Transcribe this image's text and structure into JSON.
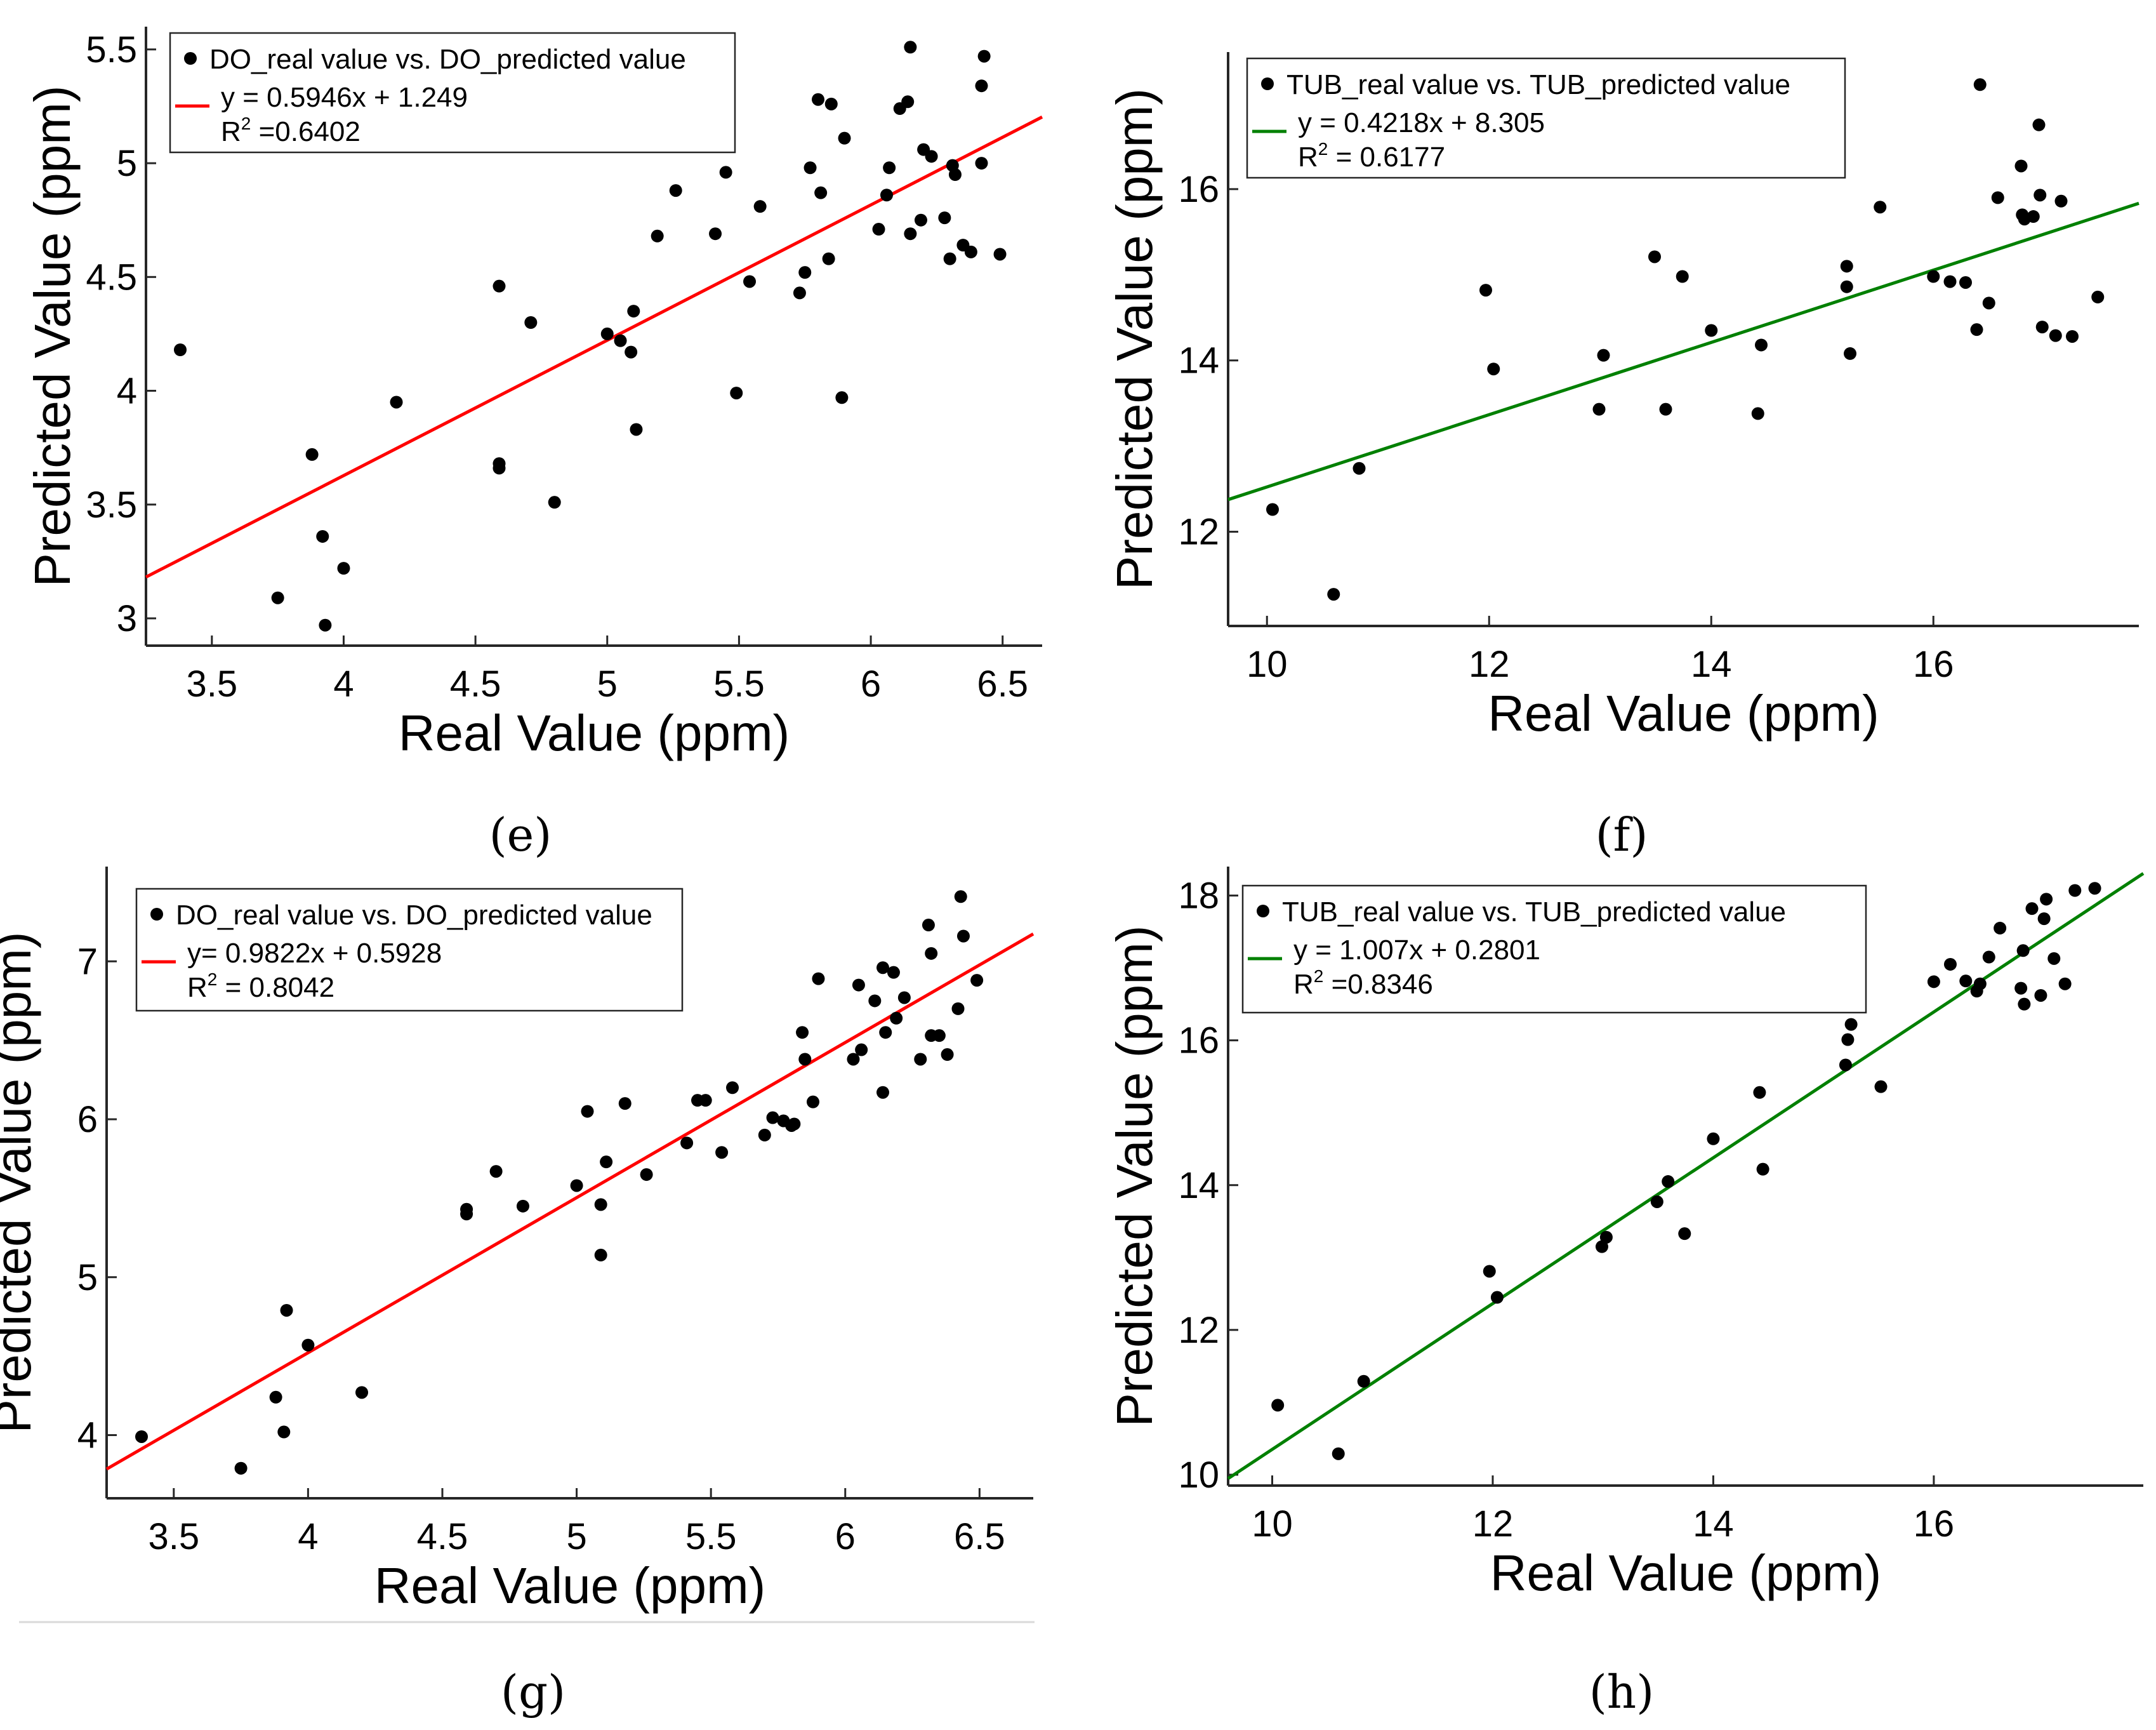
{
  "chart_data": [
    {
      "type": "scatter",
      "panel": "e",
      "caption": "(e)",
      "xlabel": "Real Value (ppm)",
      "ylabel": "Predicted Value (ppm)",
      "xlim": [
        3.25,
        6.65
      ],
      "ylim": [
        2.88,
        5.6
      ],
      "xticks": [
        3.5,
        4,
        4.5,
        5,
        5.5,
        6,
        6.5
      ],
      "xtick_labels": [
        "3.5",
        "4",
        "4.5",
        "5",
        "5.5",
        "6",
        "6.5"
      ],
      "yticks": [
        3,
        3.5,
        4,
        4.5,
        5,
        5.5
      ],
      "ytick_labels": [
        "3",
        "3.5",
        "4",
        "4.5",
        "5",
        "5.5"
      ],
      "line_color": "#ff0000",
      "fit": {
        "slope": 0.5946,
        "intercept": 1.249
      },
      "legend": {
        "position": "top-left",
        "series_label": "DO_real value vs. DO_predicted value",
        "equation": "y = 0.5946x + 1.249",
        "r2_label": "R",
        "r2_sup": "2",
        "r2_value": " =0.6402"
      },
      "points": [
        [
          3.38,
          4.18
        ],
        [
          3.75,
          3.09
        ],
        [
          3.88,
          3.72
        ],
        [
          3.92,
          3.36
        ],
        [
          3.93,
          2.97
        ],
        [
          4.0,
          3.22
        ],
        [
          4.2,
          3.95
        ],
        [
          4.59,
          4.46
        ],
        [
          4.59,
          3.68
        ],
        [
          4.59,
          3.66
        ],
        [
          4.71,
          4.3
        ],
        [
          4.8,
          3.51
        ],
        [
          5.0,
          4.25
        ],
        [
          5.05,
          4.22
        ],
        [
          5.09,
          4.17
        ],
        [
          5.1,
          4.35
        ],
        [
          5.11,
          3.83
        ],
        [
          5.19,
          4.68
        ],
        [
          5.26,
          4.88
        ],
        [
          5.41,
          4.69
        ],
        [
          5.45,
          4.96
        ],
        [
          5.49,
          3.99
        ],
        [
          5.54,
          4.48
        ],
        [
          5.58,
          4.81
        ],
        [
          5.73,
          4.43
        ],
        [
          5.75,
          4.52
        ],
        [
          5.77,
          4.98
        ],
        [
          5.8,
          5.28
        ],
        [
          5.81,
          4.87
        ],
        [
          5.84,
          4.58
        ],
        [
          5.85,
          5.26
        ],
        [
          5.89,
          3.97
        ],
        [
          5.9,
          5.11
        ],
        [
          6.03,
          4.71
        ],
        [
          6.06,
          4.86
        ],
        [
          6.07,
          4.98
        ],
        [
          6.11,
          5.24
        ],
        [
          6.14,
          5.27
        ],
        [
          6.15,
          5.51
        ],
        [
          6.15,
          4.69
        ],
        [
          6.19,
          4.75
        ],
        [
          6.2,
          5.06
        ],
        [
          6.23,
          5.03
        ],
        [
          6.28,
          4.76
        ],
        [
          6.3,
          4.58
        ],
        [
          6.31,
          4.99
        ],
        [
          6.32,
          4.95
        ],
        [
          6.35,
          4.64
        ],
        [
          6.38,
          4.61
        ],
        [
          6.42,
          5.34
        ],
        [
          6.42,
          5.0
        ],
        [
          6.43,
          5.47
        ],
        [
          6.49,
          4.6
        ]
      ]
    },
    {
      "type": "scatter",
      "panel": "f",
      "caption": "(f)",
      "xlabel": "Real Value (ppm)",
      "ylabel": "Predicted Value (ppm)",
      "xlim": [
        9.65,
        17.85
      ],
      "ylim": [
        10.9,
        17.6
      ],
      "xticks": [
        10,
        12,
        14,
        16
      ],
      "xtick_labels": [
        "10",
        "12",
        "14",
        "16"
      ],
      "yticks": [
        12,
        14,
        16
      ],
      "ytick_labels": [
        "12",
        "14",
        "16"
      ],
      "line_color": "#008000",
      "fit": {
        "slope": 0.4218,
        "intercept": 8.305
      },
      "legend": {
        "position": "top-left",
        "series_label": "TUB_real value vs. TUB_predicted value",
        "equation": "y = 0.4218x + 8.305",
        "r2_label": "R",
        "r2_sup": "2",
        "r2_value": "  = 0.6177"
      },
      "points": [
        [
          10.05,
          12.26
        ],
        [
          10.6,
          11.27
        ],
        [
          10.83,
          12.74
        ],
        [
          11.97,
          14.82
        ],
        [
          12.04,
          13.9
        ],
        [
          12.99,
          13.43
        ],
        [
          13.03,
          14.06
        ],
        [
          13.49,
          15.21
        ],
        [
          13.59,
          13.43
        ],
        [
          13.74,
          14.98
        ],
        [
          14.0,
          14.35
        ],
        [
          14.42,
          13.38
        ],
        [
          14.45,
          14.18
        ],
        [
          15.22,
          14.86
        ],
        [
          15.22,
          15.1
        ],
        [
          15.25,
          14.08
        ],
        [
          15.52,
          15.79
        ],
        [
          16.0,
          14.98
        ],
        [
          16.15,
          14.92
        ],
        [
          16.29,
          14.91
        ],
        [
          16.39,
          14.36
        ],
        [
          16.42,
          17.22
        ],
        [
          16.5,
          14.67
        ],
        [
          16.58,
          15.9
        ],
        [
          16.79,
          16.27
        ],
        [
          16.8,
          15.7
        ],
        [
          16.82,
          15.65
        ],
        [
          16.9,
          15.68
        ],
        [
          16.95,
          16.75
        ],
        [
          16.96,
          15.93
        ],
        [
          16.98,
          14.39
        ],
        [
          17.1,
          14.29
        ],
        [
          17.15,
          15.86
        ],
        [
          17.25,
          14.28
        ],
        [
          17.48,
          14.74
        ]
      ]
    },
    {
      "type": "scatter",
      "panel": "g",
      "caption": "(g)",
      "xlabel": "Real Value (ppm)",
      "ylabel": "Predicted Value (ppm)",
      "xlim": [
        3.25,
        6.7
      ],
      "ylim": [
        3.6,
        7.6
      ],
      "xticks": [
        3.5,
        4,
        4.5,
        5,
        5.5,
        6,
        6.5
      ],
      "xtick_labels": [
        "3.5",
        "4",
        "4.5",
        "5",
        "5.5",
        "6",
        "6.5"
      ],
      "yticks": [
        4,
        5,
        6,
        7
      ],
      "ytick_labels": [
        "4",
        "5",
        "6",
        "7"
      ],
      "line_color": "#ff0000",
      "fit": {
        "slope": 0.9822,
        "intercept": 0.5928
      },
      "legend": {
        "position": "top-left",
        "series_label": "DO_real value vs. DO_predicted value",
        "equation": "y= 0.9822x + 0.5928",
        "r2_label": "R",
        "r2_sup": "2",
        "r2_value": " = 0.8042"
      },
      "points": [
        [
          3.38,
          3.99
        ],
        [
          3.75,
          3.79
        ],
        [
          3.88,
          4.24
        ],
        [
          3.91,
          4.02
        ],
        [
          3.92,
          4.79
        ],
        [
          4.0,
          4.57
        ],
        [
          4.2,
          4.27
        ],
        [
          4.59,
          5.43
        ],
        [
          4.59,
          5.4
        ],
        [
          4.7,
          5.67
        ],
        [
          4.8,
          5.45
        ],
        [
          5.0,
          5.58
        ],
        [
          5.04,
          6.05
        ],
        [
          5.09,
          5.46
        ],
        [
          5.09,
          5.14
        ],
        [
          5.11,
          5.73
        ],
        [
          5.18,
          6.1
        ],
        [
          5.26,
          5.65
        ],
        [
          5.41,
          5.85
        ],
        [
          5.45,
          6.12
        ],
        [
          5.48,
          6.12
        ],
        [
          5.54,
          5.79
        ],
        [
          5.58,
          6.2
        ],
        [
          5.7,
          5.9
        ],
        [
          5.73,
          6.01
        ],
        [
          5.77,
          5.99
        ],
        [
          5.8,
          5.96
        ],
        [
          5.81,
          5.97
        ],
        [
          5.84,
          6.55
        ],
        [
          5.85,
          6.38
        ],
        [
          5.88,
          6.11
        ],
        [
          5.9,
          6.89
        ],
        [
          6.03,
          6.38
        ],
        [
          6.05,
          6.85
        ],
        [
          6.06,
          6.44
        ],
        [
          6.11,
          6.75
        ],
        [
          6.14,
          6.96
        ],
        [
          6.14,
          6.17
        ],
        [
          6.15,
          6.55
        ],
        [
          6.18,
          6.93
        ],
        [
          6.19,
          6.64
        ],
        [
          6.22,
          6.77
        ],
        [
          6.28,
          6.38
        ],
        [
          6.31,
          7.23
        ],
        [
          6.32,
          7.05
        ],
        [
          6.32,
          6.53
        ],
        [
          6.35,
          6.53
        ],
        [
          6.38,
          6.41
        ],
        [
          6.42,
          6.7
        ],
        [
          6.43,
          7.41
        ],
        [
          6.44,
          7.16
        ],
        [
          6.49,
          6.88
        ]
      ]
    },
    {
      "type": "scatter",
      "panel": "h",
      "caption": "(h)",
      "xlabel": "Real Value (ppm)",
      "ylabel": "Predicted Value (ppm)",
      "xlim": [
        9.6,
        17.9
      ],
      "ylim": [
        9.85,
        18.4
      ],
      "xticks": [
        10,
        12,
        14,
        16
      ],
      "xtick_labels": [
        "10",
        "12",
        "14",
        "16"
      ],
      "yticks": [
        10,
        12,
        14,
        16,
        18
      ],
      "ytick_labels": [
        "10",
        "12",
        "14",
        "16",
        "18"
      ],
      "line_color": "#008000",
      "fit": {
        "slope": 1.007,
        "intercept": 0.2801
      },
      "legend": {
        "position": "top-left",
        "series_label": "TUB_real value vs. TUB_predicted value",
        "equation": "y = 1.007x + 0.2801",
        "r2_label": "R",
        "r2_sup": "2",
        "r2_value": " =0.8346"
      },
      "points": [
        [
          10.05,
          10.96
        ],
        [
          10.6,
          10.29
        ],
        [
          10.83,
          11.29
        ],
        [
          11.97,
          12.81
        ],
        [
          12.04,
          12.45
        ],
        [
          12.99,
          13.15
        ],
        [
          13.03,
          13.28
        ],
        [
          13.49,
          13.77
        ],
        [
          13.59,
          14.05
        ],
        [
          13.74,
          13.33
        ],
        [
          14.0,
          14.64
        ],
        [
          14.42,
          15.28
        ],
        [
          14.45,
          14.22
        ],
        [
          15.2,
          15.66
        ],
        [
          15.22,
          16.01
        ],
        [
          15.25,
          16.22
        ],
        [
          15.52,
          15.36
        ],
        [
          16.0,
          16.81
        ],
        [
          16.15,
          17.05
        ],
        [
          16.29,
          16.82
        ],
        [
          16.39,
          16.68
        ],
        [
          16.42,
          16.78
        ],
        [
          16.5,
          17.15
        ],
        [
          16.6,
          17.55
        ],
        [
          16.79,
          16.72
        ],
        [
          16.81,
          17.24
        ],
        [
          16.82,
          16.5
        ],
        [
          16.89,
          17.82
        ],
        [
          16.97,
          16.62
        ],
        [
          17.0,
          17.68
        ],
        [
          17.02,
          17.95
        ],
        [
          17.09,
          17.13
        ],
        [
          17.19,
          16.78
        ],
        [
          17.28,
          18.07
        ],
        [
          17.46,
          18.1
        ]
      ]
    }
  ]
}
